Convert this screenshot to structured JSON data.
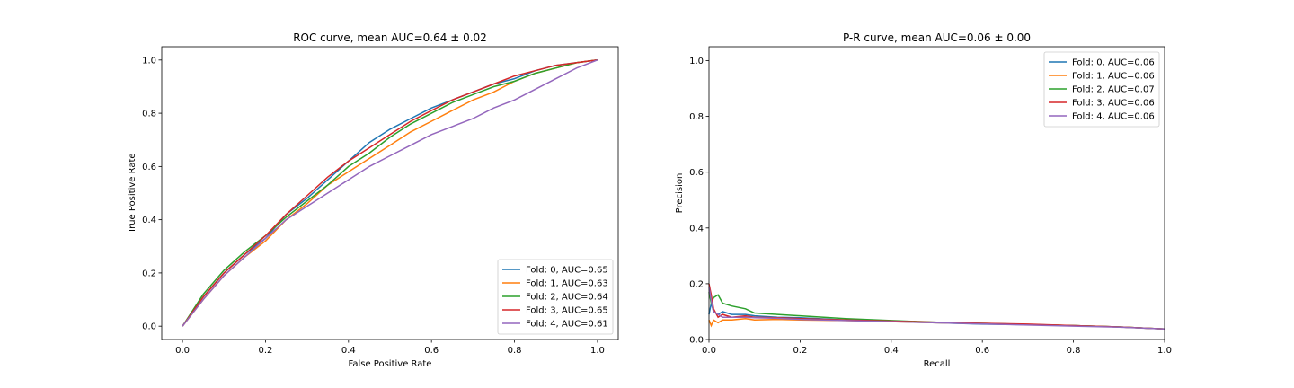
{
  "chart_data": [
    {
      "type": "line",
      "title": "ROC curve, mean AUC=0.64 ± 0.02",
      "xlabel": "False Positive Rate",
      "ylabel": "True Positive Rate",
      "xlim": [
        -0.05,
        1.05
      ],
      "ylim": [
        -0.05,
        1.05
      ],
      "xticks": [
        "0.0",
        "0.2",
        "0.4",
        "0.6",
        "0.8",
        "1.0"
      ],
      "yticks": [
        "0.0",
        "0.2",
        "0.4",
        "0.6",
        "0.8",
        "1.0"
      ],
      "legend_position": "lower right",
      "series": [
        {
          "name": "Fold: 0, AUC=0.65",
          "color": "#1f77b4",
          "x": [
            0,
            0.05,
            0.1,
            0.15,
            0.2,
            0.25,
            0.3,
            0.35,
            0.4,
            0.45,
            0.5,
            0.55,
            0.6,
            0.65,
            0.7,
            0.75,
            0.8,
            0.85,
            0.9,
            0.95,
            1.0
          ],
          "y": [
            0,
            0.11,
            0.2,
            0.27,
            0.33,
            0.42,
            0.48,
            0.55,
            0.62,
            0.69,
            0.74,
            0.78,
            0.82,
            0.85,
            0.88,
            0.91,
            0.93,
            0.96,
            0.98,
            0.99,
            1.0
          ]
        },
        {
          "name": "Fold: 1, AUC=0.63",
          "color": "#ff7f0e",
          "x": [
            0,
            0.05,
            0.1,
            0.15,
            0.2,
            0.25,
            0.3,
            0.35,
            0.4,
            0.45,
            0.5,
            0.55,
            0.6,
            0.65,
            0.7,
            0.75,
            0.8,
            0.85,
            0.9,
            0.95,
            1.0
          ],
          "y": [
            0,
            0.1,
            0.19,
            0.26,
            0.32,
            0.4,
            0.46,
            0.53,
            0.58,
            0.63,
            0.68,
            0.73,
            0.77,
            0.81,
            0.85,
            0.88,
            0.92,
            0.95,
            0.97,
            0.99,
            1.0
          ]
        },
        {
          "name": "Fold: 2, AUC=0.64",
          "color": "#2ca02c",
          "x": [
            0,
            0.05,
            0.1,
            0.15,
            0.2,
            0.25,
            0.3,
            0.35,
            0.4,
            0.45,
            0.5,
            0.55,
            0.6,
            0.65,
            0.7,
            0.75,
            0.8,
            0.85,
            0.9,
            0.95,
            1.0
          ],
          "y": [
            0,
            0.12,
            0.21,
            0.28,
            0.34,
            0.41,
            0.47,
            0.53,
            0.6,
            0.65,
            0.71,
            0.76,
            0.8,
            0.84,
            0.87,
            0.9,
            0.92,
            0.95,
            0.97,
            0.99,
            1.0
          ]
        },
        {
          "name": "Fold: 3, AUC=0.65",
          "color": "#d62728",
          "x": [
            0,
            0.05,
            0.1,
            0.15,
            0.2,
            0.25,
            0.3,
            0.35,
            0.4,
            0.45,
            0.5,
            0.55,
            0.6,
            0.65,
            0.7,
            0.75,
            0.8,
            0.85,
            0.9,
            0.95,
            1.0
          ],
          "y": [
            0,
            0.11,
            0.2,
            0.27,
            0.34,
            0.42,
            0.49,
            0.56,
            0.62,
            0.67,
            0.72,
            0.77,
            0.81,
            0.85,
            0.88,
            0.91,
            0.94,
            0.96,
            0.98,
            0.99,
            1.0
          ]
        },
        {
          "name": "Fold: 4, AUC=0.61",
          "color": "#9467bd",
          "x": [
            0,
            0.05,
            0.1,
            0.15,
            0.2,
            0.25,
            0.3,
            0.35,
            0.4,
            0.45,
            0.5,
            0.55,
            0.6,
            0.65,
            0.7,
            0.75,
            0.8,
            0.85,
            0.9,
            0.95,
            1.0
          ],
          "y": [
            0,
            0.1,
            0.19,
            0.26,
            0.33,
            0.4,
            0.45,
            0.5,
            0.55,
            0.6,
            0.64,
            0.68,
            0.72,
            0.75,
            0.78,
            0.82,
            0.85,
            0.89,
            0.93,
            0.97,
            1.0
          ]
        }
      ]
    },
    {
      "type": "line",
      "title": "P-R curve, mean AUC=0.06 ± 0.00",
      "xlabel": "Recall",
      "ylabel": "Precision",
      "xlim": [
        0,
        1
      ],
      "ylim": [
        0,
        1.05
      ],
      "xticks": [
        "0.0",
        "0.2",
        "0.4",
        "0.6",
        "0.8",
        "1.0"
      ],
      "yticks": [
        "0.0",
        "0.2",
        "0.4",
        "0.6",
        "0.8",
        "1.0"
      ],
      "legend_position": "upper right",
      "series": [
        {
          "name": "Fold: 0, AUC=0.06",
          "color": "#1f77b4",
          "x": [
            0,
            0.005,
            0.01,
            0.02,
            0.03,
            0.05,
            0.08,
            0.1,
            0.15,
            0.2,
            0.3,
            0.4,
            0.5,
            0.6,
            0.7,
            0.8,
            0.9,
            1.0
          ],
          "y": [
            0.09,
            0.13,
            0.1,
            0.09,
            0.1,
            0.09,
            0.09,
            0.085,
            0.08,
            0.078,
            0.07,
            0.065,
            0.06,
            0.055,
            0.053,
            0.05,
            0.045,
            0.038
          ]
        },
        {
          "name": "Fold: 1, AUC=0.06",
          "color": "#ff7f0e",
          "x": [
            0,
            0.005,
            0.01,
            0.02,
            0.03,
            0.05,
            0.08,
            0.1,
            0.15,
            0.2,
            0.3,
            0.4,
            0.5,
            0.6,
            0.7,
            0.8,
            0.9,
            1.0
          ],
          "y": [
            0.07,
            0.05,
            0.07,
            0.06,
            0.07,
            0.07,
            0.075,
            0.07,
            0.072,
            0.07,
            0.068,
            0.064,
            0.06,
            0.057,
            0.053,
            0.05,
            0.045,
            0.038
          ]
        },
        {
          "name": "Fold: 2, AUC=0.07",
          "color": "#2ca02c",
          "x": [
            0,
            0.005,
            0.01,
            0.02,
            0.03,
            0.05,
            0.08,
            0.1,
            0.15,
            0.2,
            0.3,
            0.4,
            0.5,
            0.6,
            0.7,
            0.8,
            0.9,
            1.0
          ],
          "y": [
            0.17,
            0.13,
            0.15,
            0.16,
            0.13,
            0.12,
            0.11,
            0.095,
            0.09,
            0.085,
            0.075,
            0.068,
            0.062,
            0.058,
            0.054,
            0.05,
            0.045,
            0.038
          ]
        },
        {
          "name": "Fold: 3, AUC=0.06",
          "color": "#d62728",
          "x": [
            0,
            0.005,
            0.01,
            0.02,
            0.03,
            0.05,
            0.08,
            0.1,
            0.15,
            0.2,
            0.3,
            0.4,
            0.5,
            0.6,
            0.7,
            0.8,
            0.9,
            1.0
          ],
          "y": [
            0.2,
            0.16,
            0.11,
            0.08,
            0.09,
            0.08,
            0.085,
            0.08,
            0.078,
            0.075,
            0.07,
            0.066,
            0.062,
            0.058,
            0.055,
            0.05,
            0.045,
            0.038
          ]
        },
        {
          "name": "Fold: 4, AUC=0.06",
          "color": "#9467bd",
          "x": [
            0,
            0.005,
            0.01,
            0.02,
            0.03,
            0.05,
            0.08,
            0.1,
            0.15,
            0.2,
            0.3,
            0.4,
            0.5,
            0.6,
            0.7,
            0.8,
            0.9,
            1.0
          ],
          "y": [
            0.19,
            0.14,
            0.1,
            0.09,
            0.08,
            0.08,
            0.08,
            0.078,
            0.076,
            0.072,
            0.068,
            0.064,
            0.06,
            0.056,
            0.052,
            0.048,
            0.044,
            0.038
          ]
        }
      ]
    }
  ]
}
